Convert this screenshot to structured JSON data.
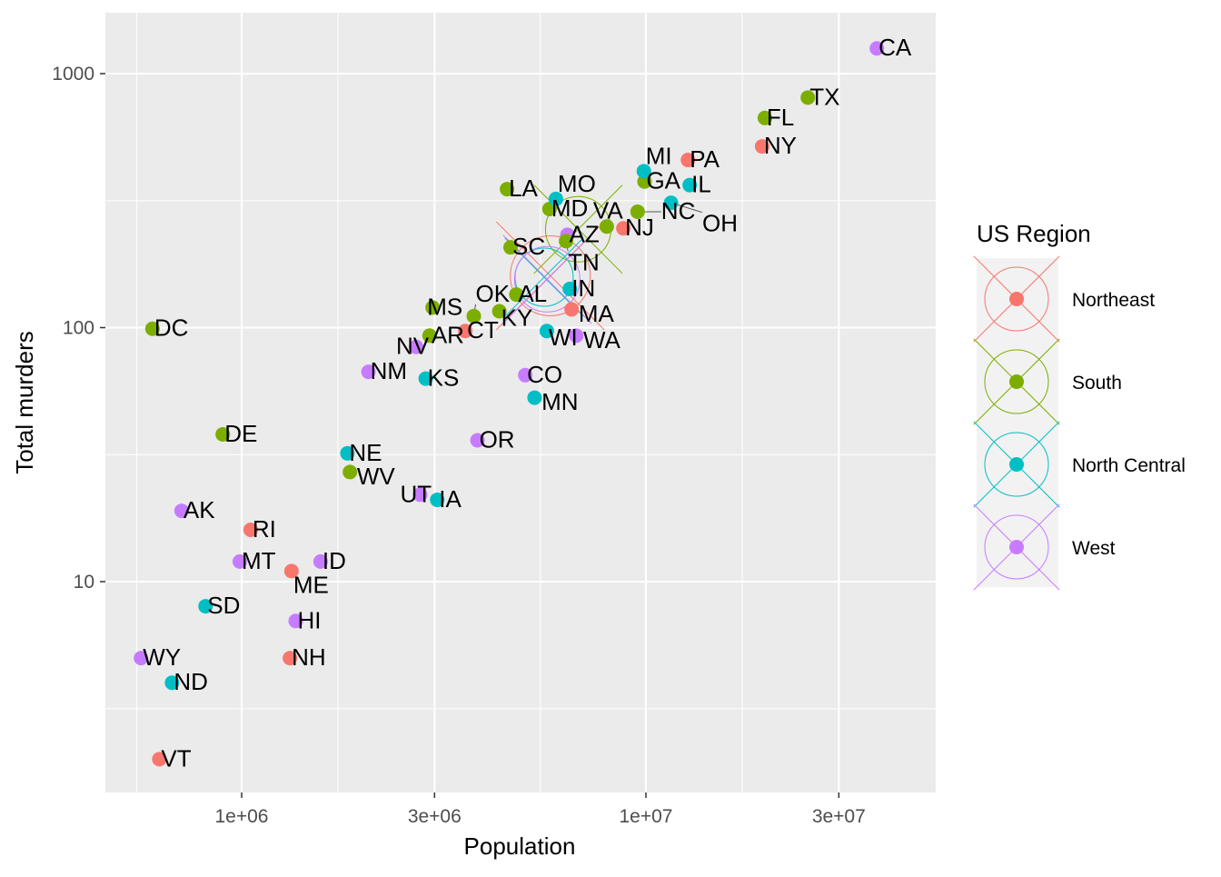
{
  "chart_data": {
    "type": "scatter",
    "xlabel": "Population",
    "ylabel": "Total murders",
    "x_scale": "log10",
    "y_scale": "log10",
    "xlim": [
      480000,
      48000000
    ],
    "ylim": [
      1.55,
      1700
    ],
    "x_ticks": [
      {
        "v": 1000000,
        "label": "1e+06"
      },
      {
        "v": 3000000,
        "label": "3e+06"
      },
      {
        "v": 10000000,
        "label": "1e+07"
      },
      {
        "v": 30000000,
        "label": "3e+07"
      }
    ],
    "y_ticks": [
      {
        "v": 10,
        "label": "10"
      },
      {
        "v": 100,
        "label": "100"
      },
      {
        "v": 1000,
        "label": "1000"
      }
    ],
    "legend": {
      "title": "US Region",
      "position": "right",
      "entries": [
        {
          "name": "Northeast",
          "color": "#F8766D"
        },
        {
          "name": "South",
          "color": "#7CAE00"
        },
        {
          "name": "North Central",
          "color": "#00BFC4"
        },
        {
          "name": "West",
          "color": "#C77CFF"
        }
      ]
    },
    "region_summary_points": [
      {
        "region": "Northeast",
        "x": 5800000,
        "y": 160
      },
      {
        "region": "South",
        "x": 6800000,
        "y": 244
      },
      {
        "region": "North Central",
        "x": 5600000,
        "y": 158
      },
      {
        "region": "West",
        "x": 5700000,
        "y": 155
      }
    ],
    "points": [
      [
        "AL",
        4779736,
        135,
        "South"
      ],
      [
        "AK",
        710231,
        19,
        "West"
      ],
      [
        "AZ",
        6392017,
        232,
        "West"
      ],
      [
        "AR",
        2915918,
        93,
        "South"
      ],
      [
        "CA",
        37253956,
        1257,
        "West"
      ],
      [
        "CO",
        5029196,
        65,
        "West"
      ],
      [
        "CT",
        3574097,
        97,
        "Northeast"
      ],
      [
        "DE",
        897934,
        38,
        "South"
      ],
      [
        "DC",
        601723,
        99,
        "South"
      ],
      [
        "FL",
        19687653,
        669,
        "South"
      ],
      [
        "GA",
        9920000,
        376,
        "South"
      ],
      [
        "HI",
        1360301,
        7,
        "West"
      ],
      [
        "ID",
        1567582,
        12,
        "West"
      ],
      [
        "IL",
        12830632,
        364,
        "North Central"
      ],
      [
        "IN",
        6483802,
        142,
        "North Central"
      ],
      [
        "IA",
        3046355,
        21,
        "North Central"
      ],
      [
        "KS",
        2853118,
        63,
        "North Central"
      ],
      [
        "KY",
        4339367,
        116,
        "South"
      ],
      [
        "LA",
        4533372,
        351,
        "South"
      ],
      [
        "ME",
        1328361,
        11,
        "Northeast"
      ],
      [
        "MD",
        5773552,
        293,
        "South"
      ],
      [
        "MA",
        6547629,
        118,
        "Northeast"
      ],
      [
        "MI",
        9883640,
        413,
        "North Central"
      ],
      [
        "MN",
        5303925,
        53,
        "North Central"
      ],
      [
        "MS",
        2967297,
        120,
        "South"
      ],
      [
        "MO",
        5988927,
        321,
        "North Central"
      ],
      [
        "MT",
        989415,
        12,
        "West"
      ],
      [
        "NE",
        1826341,
        32,
        "North Central"
      ],
      [
        "NV",
        2700551,
        84,
        "West"
      ],
      [
        "NH",
        1316470,
        5,
        "Northeast"
      ],
      [
        "NJ",
        8791894,
        246,
        "Northeast"
      ],
      [
        "NM",
        2059179,
        67,
        "West"
      ],
      [
        "NY",
        19378102,
        517,
        "Northeast"
      ],
      [
        "NC",
        9535483,
        286,
        "South"
      ],
      [
        "ND",
        672591,
        4,
        "North Central"
      ],
      [
        "OH",
        11536504,
        310,
        "North Central"
      ],
      [
        "OK",
        3751351,
        111,
        "South"
      ],
      [
        "OR",
        3831074,
        36,
        "West"
      ],
      [
        "PA",
        12702379,
        457,
        "Northeast"
      ],
      [
        "RI",
        1052567,
        16,
        "Northeast"
      ],
      [
        "SC",
        4625364,
        207,
        "South"
      ],
      [
        "SD",
        814180,
        8,
        "North Central"
      ],
      [
        "TN",
        6346105,
        219,
        "South"
      ],
      [
        "TX",
        25145561,
        805,
        "South"
      ],
      [
        "UT",
        2763885,
        22,
        "West"
      ],
      [
        "VT",
        625741,
        2,
        "Northeast"
      ],
      [
        "VA",
        8001024,
        250,
        "South"
      ],
      [
        "WA",
        6724540,
        93,
        "West"
      ],
      [
        "WV",
        1852994,
        27,
        "South"
      ],
      [
        "WI",
        5686986,
        97,
        "North Central"
      ],
      [
        "WY",
        563626,
        5,
        "West"
      ]
    ]
  }
}
